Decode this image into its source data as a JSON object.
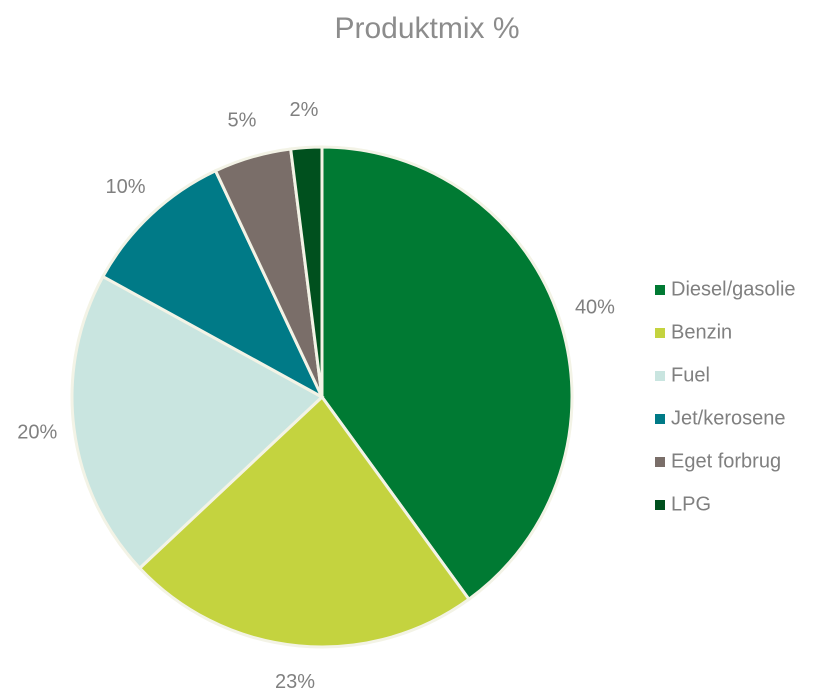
{
  "chart_data": {
    "type": "pie",
    "title": "Produktmix %",
    "categories": [
      "Diesel/gasolie",
      "Benzin",
      "Fuel",
      "Jet/kerosene",
      "Eget forbrug",
      "LPG"
    ],
    "values": [
      40,
      23,
      20,
      10,
      5,
      2
    ],
    "value_labels": [
      "40%",
      "23%",
      "20%",
      "10%",
      "5%",
      "2%"
    ],
    "colors": [
      "#007a33",
      "#c4d33f",
      "#c9e5e0",
      "#007a87",
      "#7a6e69",
      "#00501e"
    ],
    "legend": "right"
  }
}
